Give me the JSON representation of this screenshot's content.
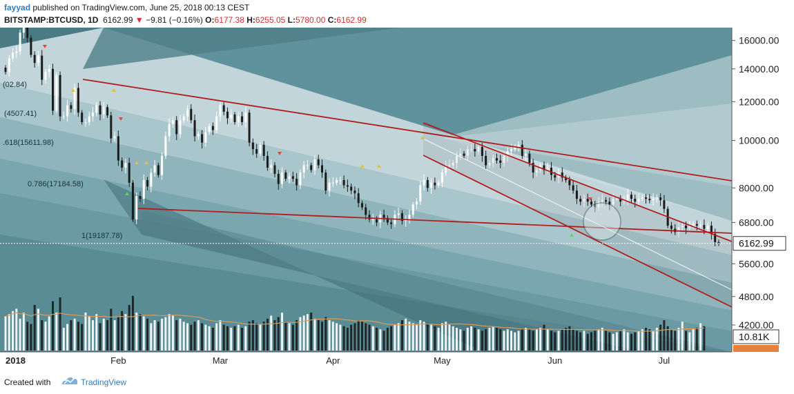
{
  "header": {
    "user": "fayyad",
    "published_text": " published on TradingView.com, June 25, 2018 00:13 CEST",
    "symbol": "BITSTAMP:BTCUSD, 1D",
    "last": "6162.99",
    "change": "−9.81 (−0.16%)",
    "open_label": "O:",
    "open": "6177.38",
    "high_label": "H:",
    "high": "6255.05",
    "low_label": "L:",
    "low": "5780.00",
    "close_label": "C:",
    "close": "6162.99"
  },
  "footer": {
    "created_with": "Created with",
    "brand": "TradingView"
  },
  "colors": {
    "background": "#5f929c",
    "band_light": "#dbe6e9",
    "channel_red": "#b31c1c",
    "price_line": "#ffffff"
  },
  "chart_data": {
    "type": "candlestick",
    "y_scale": "log",
    "ylim": [
      3700,
      17000
    ],
    "xlim": [
      "2018-01-01",
      "2018-07-31"
    ],
    "price_ticks": [
      "16000.00",
      "14000.00",
      "12000.00",
      "10000.00",
      "8000.00",
      "6800.00",
      "5600.00",
      "4800.00",
      "4200.00"
    ],
    "price_tick_values": [
      16000,
      14000,
      12000,
      10000,
      8000,
      6800,
      5600,
      4800,
      4200
    ],
    "x_ticks": [
      {
        "label": "2018",
        "date": "2018-01-01"
      },
      {
        "label": "Feb",
        "date": "2018-02-01"
      },
      {
        "label": "Mar",
        "date": "2018-03-01"
      },
      {
        "label": "Apr",
        "date": "2018-04-01"
      },
      {
        "label": "May",
        "date": "2018-05-01"
      },
      {
        "label": "Jun",
        "date": "2018-06-01"
      },
      {
        "label": "Jul",
        "date": "2018-07-01"
      }
    ],
    "last_price": {
      "label": "6162.99",
      "value": 6162.99
    },
    "volume_label": "10.81K",
    "fib_labels": [
      {
        "text": "(02.84)"
      },
      {
        "text": "(4507.41)"
      },
      {
        "text": ".618(15611.98)"
      },
      {
        "text": "0.786(17184.58)"
      },
      {
        "text": "1(19187.78)"
      }
    ],
    "closes": [
      13800,
      14700,
      15100,
      15200,
      16600,
      17100,
      16200,
      14950,
      14400,
      14900,
      13300,
      13800,
      14000,
      11500,
      13600,
      11200,
      11200,
      11800,
      11600,
      12800,
      11400,
      10900,
      10900,
      11200,
      11400,
      11800,
      11300,
      11700,
      11250,
      10100,
      10200,
      9100,
      8800,
      9000,
      8200,
      6900,
      7700,
      7600,
      8300,
      8050,
      8600,
      8900,
      8500,
      9300,
      10200,
      10800,
      11000,
      10300,
      11000,
      11200,
      11600,
      11000,
      10200,
      10300,
      9900,
      10400,
      10700,
      10500,
      11200,
      11800,
      11450,
      11100,
      11300,
      10900,
      11200,
      10900,
      11400,
      9900,
      9600,
      9400,
      9800,
      9300,
      8800,
      8900,
      8550,
      8150,
      8600,
      8350,
      8450,
      8350,
      8100,
      8600,
      8900,
      8900,
      8700,
      9150,
      8900,
      8600,
      7900,
      8200,
      8200,
      8300,
      8300,
      8100,
      8050,
      7900,
      7800,
      7450,
      7300,
      7050,
      6900,
      6900,
      6800,
      7050,
      6950,
      6800,
      6750,
      7050,
      7100,
      6850,
      6900,
      7050,
      7400,
      7500,
      8100,
      8300,
      8000,
      8200,
      8100,
      8200,
      8600,
      8900,
      8900,
      9000,
      9300,
      9400,
      9300,
      9600,
      9600,
      9500,
      9700,
      9300,
      8900,
      9000,
      9200,
      9100,
      9000,
      9300,
      9500,
      9600,
      9700,
      9800,
      9300,
      9400,
      9000,
      8600,
      8700,
      8900,
      8700,
      8800,
      8500,
      8400,
      8600,
      8400,
      8300,
      8100,
      7900,
      7600,
      7500,
      7600,
      7500,
      7400,
      7300,
      7500,
      7550,
      7500,
      7400,
      7600,
      7600,
      7500,
      7550,
      7750,
      7600,
      7500,
      7600,
      7650,
      7600,
      7550,
      7600,
      7650,
      7550,
      7250,
      6700,
      6600,
      6500,
      6650,
      6700,
      6620,
      6680,
      6750,
      6700,
      6720,
      6600,
      6700,
      6450,
      6200,
      6163
    ],
    "series": [
      {
        "name": "Volume",
        "values": [
          45,
          48,
          52,
          55,
          42,
          50,
          38,
          35,
          60,
          55,
          40,
          38,
          45,
          65,
          50,
          70,
          30,
          35,
          40,
          42,
          38,
          35,
          50,
          45,
          40,
          48,
          36,
          42,
          40,
          55,
          40,
          45,
          52,
          48,
          60,
          72,
          50,
          48,
          45,
          42,
          36,
          40,
          38,
          42,
          44,
          48,
          46,
          40,
          42,
          38,
          36,
          34,
          38,
          40,
          36,
          34,
          32,
          30,
          36,
          40,
          34,
          32,
          30,
          32,
          34,
          30,
          32,
          38,
          40,
          36,
          34,
          38,
          42,
          46,
          40,
          44,
          50,
          38,
          36,
          34,
          40,
          44,
          46,
          48,
          50,
          42,
          40,
          38,
          44,
          40,
          38,
          36,
          34,
          32,
          30,
          34,
          36,
          40,
          38,
          36,
          34,
          32,
          30,
          28,
          26,
          30,
          32,
          34,
          36,
          40,
          42,
          38,
          36,
          34,
          40,
          38,
          36,
          34,
          32,
          30,
          36,
          38,
          34,
          32,
          30,
          28,
          26,
          30,
          32,
          30,
          28,
          26,
          28,
          30,
          32,
          30,
          28,
          26,
          28,
          26,
          24,
          26,
          28,
          30,
          28,
          26,
          28,
          30,
          34,
          28,
          26,
          24,
          26,
          28,
          30,
          32,
          28,
          26,
          24,
          26,
          22,
          24,
          26,
          28,
          30,
          26,
          24,
          22,
          24,
          26,
          28,
          24,
          22,
          24,
          26,
          28,
          30,
          28,
          26,
          30,
          34,
          40,
          32,
          28,
          26,
          30,
          38,
          26,
          24,
          28,
          30,
          36,
          32
        ]
      }
    ]
  }
}
